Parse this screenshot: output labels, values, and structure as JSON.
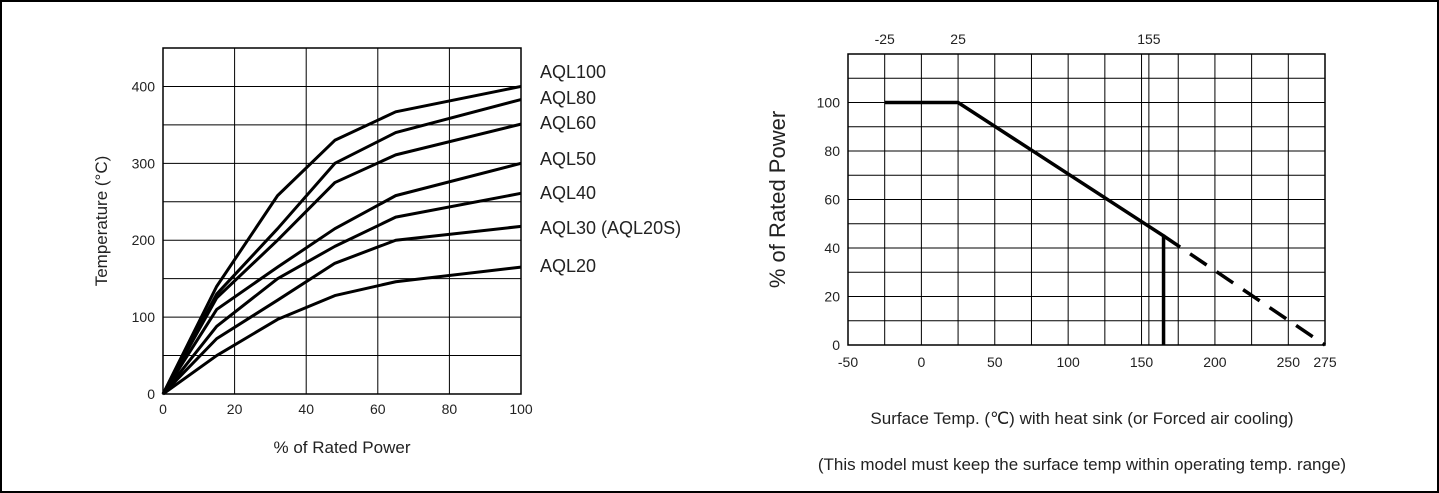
{
  "chart_data": [
    {
      "type": "line",
      "xlabel": "% of Rated Power",
      "ylabel": "Temperature (°C)",
      "xlim": [
        0,
        100
      ],
      "ylim": [
        0,
        450
      ],
      "x_ticks": [
        0,
        20,
        40,
        60,
        80,
        100
      ],
      "y_ticks": [
        0,
        100,
        200,
        300,
        400
      ],
      "x_grid": [
        0,
        20,
        40,
        60,
        80,
        100
      ],
      "y_grid": [
        0,
        50,
        100,
        150,
        200,
        250,
        300,
        350,
        400,
        450
      ],
      "x_tick_labels": [
        "0",
        "20",
        "40",
        "60",
        "80",
        "100"
      ],
      "y_tick_labels": [
        "0",
        "100",
        "200",
        "300",
        "400"
      ],
      "series": [
        {
          "name": "AQL100",
          "x": [
            0,
            15,
            32,
            48,
            65,
            100
          ],
          "y": [
            0,
            140,
            258,
            330,
            367,
            400
          ]
        },
        {
          "name": "AQL80",
          "x": [
            0,
            15,
            32,
            48,
            65,
            100
          ],
          "y": [
            0,
            130,
            215,
            300,
            340,
            383
          ]
        },
        {
          "name": "AQL60",
          "x": [
            0,
            15,
            32,
            48,
            65,
            100
          ],
          "y": [
            0,
            125,
            200,
            275,
            311,
            351
          ]
        },
        {
          "name": "AQL50",
          "x": [
            0,
            15,
            32,
            48,
            65,
            100
          ],
          "y": [
            0,
            110,
            165,
            215,
            258,
            300
          ]
        },
        {
          "name": "AQL40",
          "x": [
            0,
            15,
            32,
            48,
            65,
            100
          ],
          "y": [
            0,
            88,
            150,
            192,
            230,
            261
          ]
        },
        {
          "name": "AQL30 (AQL20S)",
          "x": [
            0,
            15,
            32,
            48,
            65,
            100
          ],
          "y": [
            0,
            72,
            122,
            170,
            200,
            218
          ]
        },
        {
          "name": "AQL20",
          "x": [
            0,
            15,
            32,
            48,
            65,
            100
          ],
          "y": [
            0,
            50,
            97,
            128,
            146,
            165
          ]
        }
      ]
    },
    {
      "type": "line",
      "xlabel": "Surface Temp. (℃) with heat sink (or Forced air cooling)",
      "ylabel": "% of Rated Power",
      "note": "(This model must keep the surface temp within operating temp. range)",
      "xlim": [
        -50,
        275
      ],
      "ylim": [
        0,
        120
      ],
      "x_ticks": [
        -50,
        0,
        50,
        100,
        150,
        200,
        250,
        275
      ],
      "y_ticks": [
        0,
        20,
        40,
        60,
        80,
        100
      ],
      "x_tick_labels": [
        "-50",
        "0",
        "50",
        "100",
        "150",
        "200",
        "250",
        "275"
      ],
      "y_tick_labels": [
        "0",
        "20",
        "40",
        "60",
        "80",
        "100"
      ],
      "top_tick_values": [
        -25,
        25,
        155
      ],
      "top_tick_labels": [
        "-25",
        "25",
        "155"
      ],
      "x_grid": [
        -25,
        0,
        25,
        50,
        75,
        100,
        125,
        150,
        155,
        175,
        200,
        225,
        250,
        275
      ],
      "y_grid": [
        0,
        10,
        20,
        30,
        40,
        50,
        60,
        70,
        80,
        90,
        100,
        110,
        120
      ],
      "series": [
        {
          "style": "solid",
          "x": [
            -25,
            25,
            165,
            165
          ],
          "y": [
            100,
            100,
            45,
            0
          ]
        },
        {
          "style": "dashed",
          "x": [
            165,
            275
          ],
          "y": [
            45,
            0
          ]
        }
      ]
    }
  ]
}
